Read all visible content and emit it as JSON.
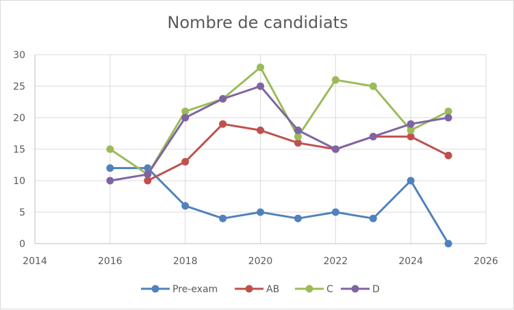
{
  "chart_data": {
    "type": "scatter",
    "title": "Nombre de candidiats",
    "xlabel": "",
    "ylabel": "",
    "xlim": [
      2014,
      2026
    ],
    "ylim": [
      0,
      30
    ],
    "xticks": [
      2014,
      2016,
      2018,
      2020,
      2022,
      2024,
      2026
    ],
    "yticks": [
      0,
      5,
      10,
      15,
      20,
      25,
      30
    ],
    "grid": true,
    "legend_position": "bottom",
    "x": [
      2016,
      2017,
      2018,
      2019,
      2020,
      2021,
      2022,
      2023,
      2024,
      2025
    ],
    "series": [
      {
        "name": "Pre-exam",
        "color": "#4f81bd",
        "values": [
          12,
          12,
          6,
          4,
          5,
          4,
          5,
          4,
          10,
          0
        ]
      },
      {
        "name": "AB",
        "color": "#c0504d",
        "values": [
          null,
          10,
          13,
          19,
          18,
          16,
          15,
          17,
          17,
          14
        ]
      },
      {
        "name": "C",
        "color": "#9bbb59",
        "values": [
          15,
          11,
          21,
          23,
          28,
          17,
          26,
          25,
          18,
          21
        ]
      },
      {
        "name": "D",
        "color": "#8064a2",
        "values": [
          10,
          11,
          20,
          23,
          25,
          18,
          15,
          17,
          19,
          20
        ]
      }
    ]
  }
}
